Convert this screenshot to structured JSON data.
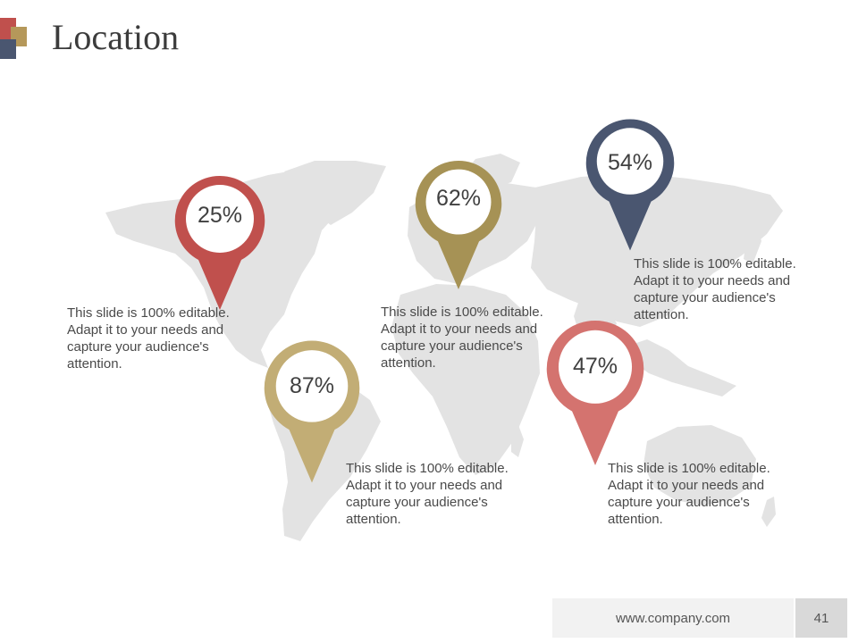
{
  "slide": {
    "title": "Location",
    "page_number": "41",
    "footer_url": "www.company.com"
  },
  "colors": {
    "red": "#c0504d",
    "olive": "#a69255",
    "navy": "#4a5670",
    "salmon": "#d4736f",
    "tan": "#c2ad75",
    "logo_red": "#c0504d",
    "logo_gold": "#b5985a",
    "logo_navy": "#4a5670",
    "map_gray": "#e3e3e3"
  },
  "markers": [
    {
      "id": "north-america",
      "value": "25%",
      "color": "#c0504d",
      "description": "This slide is 100% editable. Adapt it to your needs and capture your audience's attention."
    },
    {
      "id": "europe",
      "value": "62%",
      "color": "#a69255",
      "description": "This slide is 100% editable. Adapt it to your needs and capture your audience's attention."
    },
    {
      "id": "asia",
      "value": "54%",
      "color": "#4a5670",
      "description": "This slide is 100% editable. Adapt it to your needs and capture your audience's attention."
    },
    {
      "id": "south-america",
      "value": "87%",
      "color": "#c2ad75",
      "description": "This slide is 100% editable. Adapt it to your needs and capture your audience's attention."
    },
    {
      "id": "southeast-asia",
      "value": "47%",
      "color": "#d4736f",
      "description": "This slide is 100% editable. Adapt it to your needs and capture your audience's attention."
    }
  ]
}
